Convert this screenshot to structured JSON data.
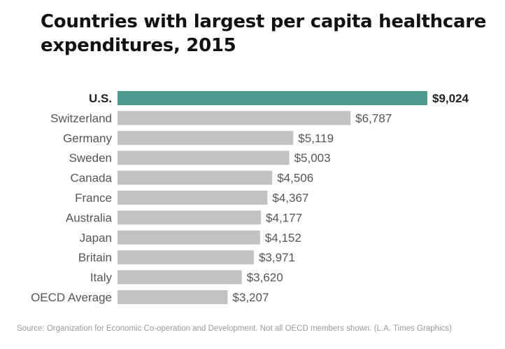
{
  "title": "Countries with largest per capita healthcare expenditures, 2015",
  "source": "Source: Organization for Economic Co-operation and Development. Not all OECD members shown. (L.A. Times Graphics)",
  "colors": {
    "highlight": "#4e9a8f",
    "bar": "#c2c2c2",
    "label": "#555555",
    "highlight_label": "#222222"
  },
  "chart_data": {
    "type": "bar",
    "orientation": "horizontal",
    "title": "Countries with largest per capita healthcare expenditures, 2015",
    "categories": [
      "U.S.",
      "Switzerland",
      "Germany",
      "Sweden",
      "Canada",
      "France",
      "Australia",
      "Japan",
      "Britain",
      "Italy",
      "OECD Average"
    ],
    "values": [
      9024,
      6787,
      5119,
      5003,
      4506,
      4367,
      4177,
      4152,
      3971,
      3620,
      3207
    ],
    "value_labels": [
      "$9,024",
      "$6,787",
      "$5,119",
      "$5,003",
      "$4,506",
      "$4,367",
      "$4,177",
      "$4,152",
      "$3,971",
      "$3,620",
      "$3,207"
    ],
    "highlighted": [
      "U.S."
    ],
    "xlabel": "",
    "ylabel": "",
    "xlim": [
      0,
      9024
    ],
    "grid": false,
    "legend": "none"
  }
}
